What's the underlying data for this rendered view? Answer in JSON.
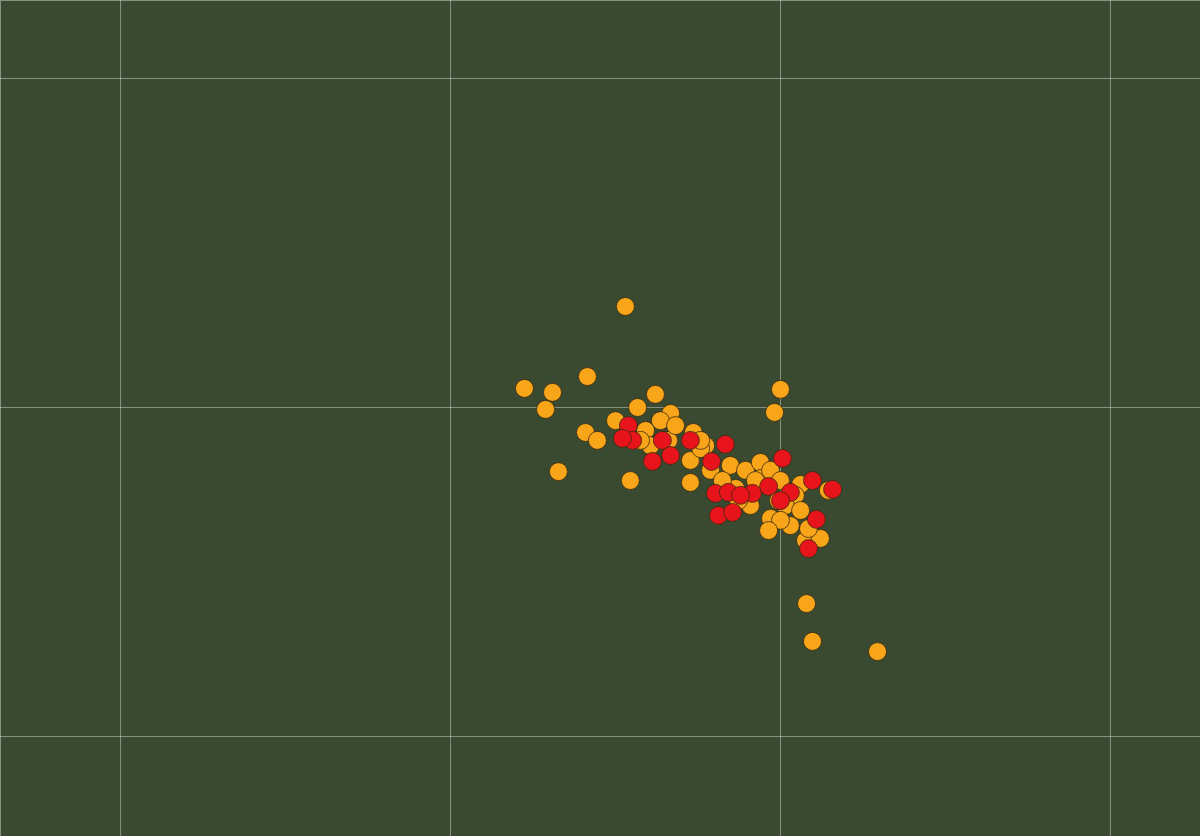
{
  "chart_data": {
    "type": "scatter",
    "xlim": [
      -155.4364,
      -155.0727
    ],
    "ylim": [
      19.2696,
      19.5237
    ],
    "xticks": [
      -155.4,
      -155.3,
      -155.2,
      -155.1
    ],
    "yticks": [
      19.3,
      19.4,
      19.5
    ],
    "grid": true,
    "tick_labels": false,
    "series": [
      {
        "color": "#f9a51a",
        "x": [
          -155.247,
          -155.2776,
          -155.2691,
          -155.2585,
          -155.2712,
          -155.2,
          -155.2018,
          -155.2379,
          -155.2433,
          -155.2333,
          -155.2364,
          -155.2409,
          -155.2591,
          -155.2555,
          -155.2673,
          -155.2455,
          -155.2264,
          -155.2227,
          -155.2273,
          -155.2242,
          -155.2152,
          -155.2106,
          -155.2061,
          -155.2273,
          -155.2061,
          -155.203,
          -155.2182,
          -155.2136,
          -155.2076,
          -155.2,
          -155.1939,
          -155.1955,
          -155.1985,
          -155.203,
          -155.1939,
          -155.197,
          -155.2,
          -155.2036,
          -155.1924,
          -155.1879,
          -155.1855,
          -155.1921,
          -155.1903,
          -155.1706,
          -155.2394,
          -155.2339,
          -155.25,
          -155.2424,
          -155.2212,
          -155.2176,
          -155.2006,
          -155.1915,
          -155.2318,
          -155.2242,
          -155.2091,
          -155.2127
        ],
        "y": [
          19.4307,
          19.4058,
          19.4046,
          19.4094,
          19.3994,
          19.4055,
          19.3985,
          19.404,
          19.4,
          19.3982,
          19.396,
          19.393,
          19.3924,
          19.39,
          19.3805,
          19.3778,
          19.3924,
          19.3884,
          19.3839,
          19.3875,
          19.3824,
          19.3809,
          19.3833,
          19.3772,
          19.3784,
          19.3809,
          19.3748,
          19.3754,
          19.3778,
          19.3778,
          19.3766,
          19.3733,
          19.3702,
          19.3663,
          19.3687,
          19.3641,
          19.3657,
          19.3626,
          19.3596,
          19.3602,
          19.3748,
          19.3404,
          19.3289,
          19.3258,
          19.3884,
          19.39,
          19.396,
          19.39,
          19.3809,
          19.3778,
          19.3717,
          19.3632,
          19.3945,
          19.39,
          19.3702,
          19.3717
        ]
      },
      {
        "color": "#e8141b",
        "x": [
          -155.2461,
          -155.2448,
          -155.2479,
          -155.2358,
          -155.2388,
          -155.2333,
          -155.2273,
          -155.2167,
          -155.2209,
          -155.1994,
          -155.1903,
          -155.1842,
          -155.2036,
          -155.197,
          -155.2085,
          -155.2,
          -155.2197,
          -155.2158,
          -155.2188,
          -155.2145,
          -155.1891,
          -155.1915,
          -155.2121
        ],
        "y": [
          19.3945,
          19.39,
          19.3906,
          19.39,
          19.3836,
          19.3854,
          19.39,
          19.3888,
          19.3836,
          19.3845,
          19.3778,
          19.3751,
          19.376,
          19.3742,
          19.3739,
          19.3717,
          19.3739,
          19.3742,
          19.3672,
          19.3681,
          19.366,
          19.3571,
          19.3733
        ]
      }
    ]
  }
}
